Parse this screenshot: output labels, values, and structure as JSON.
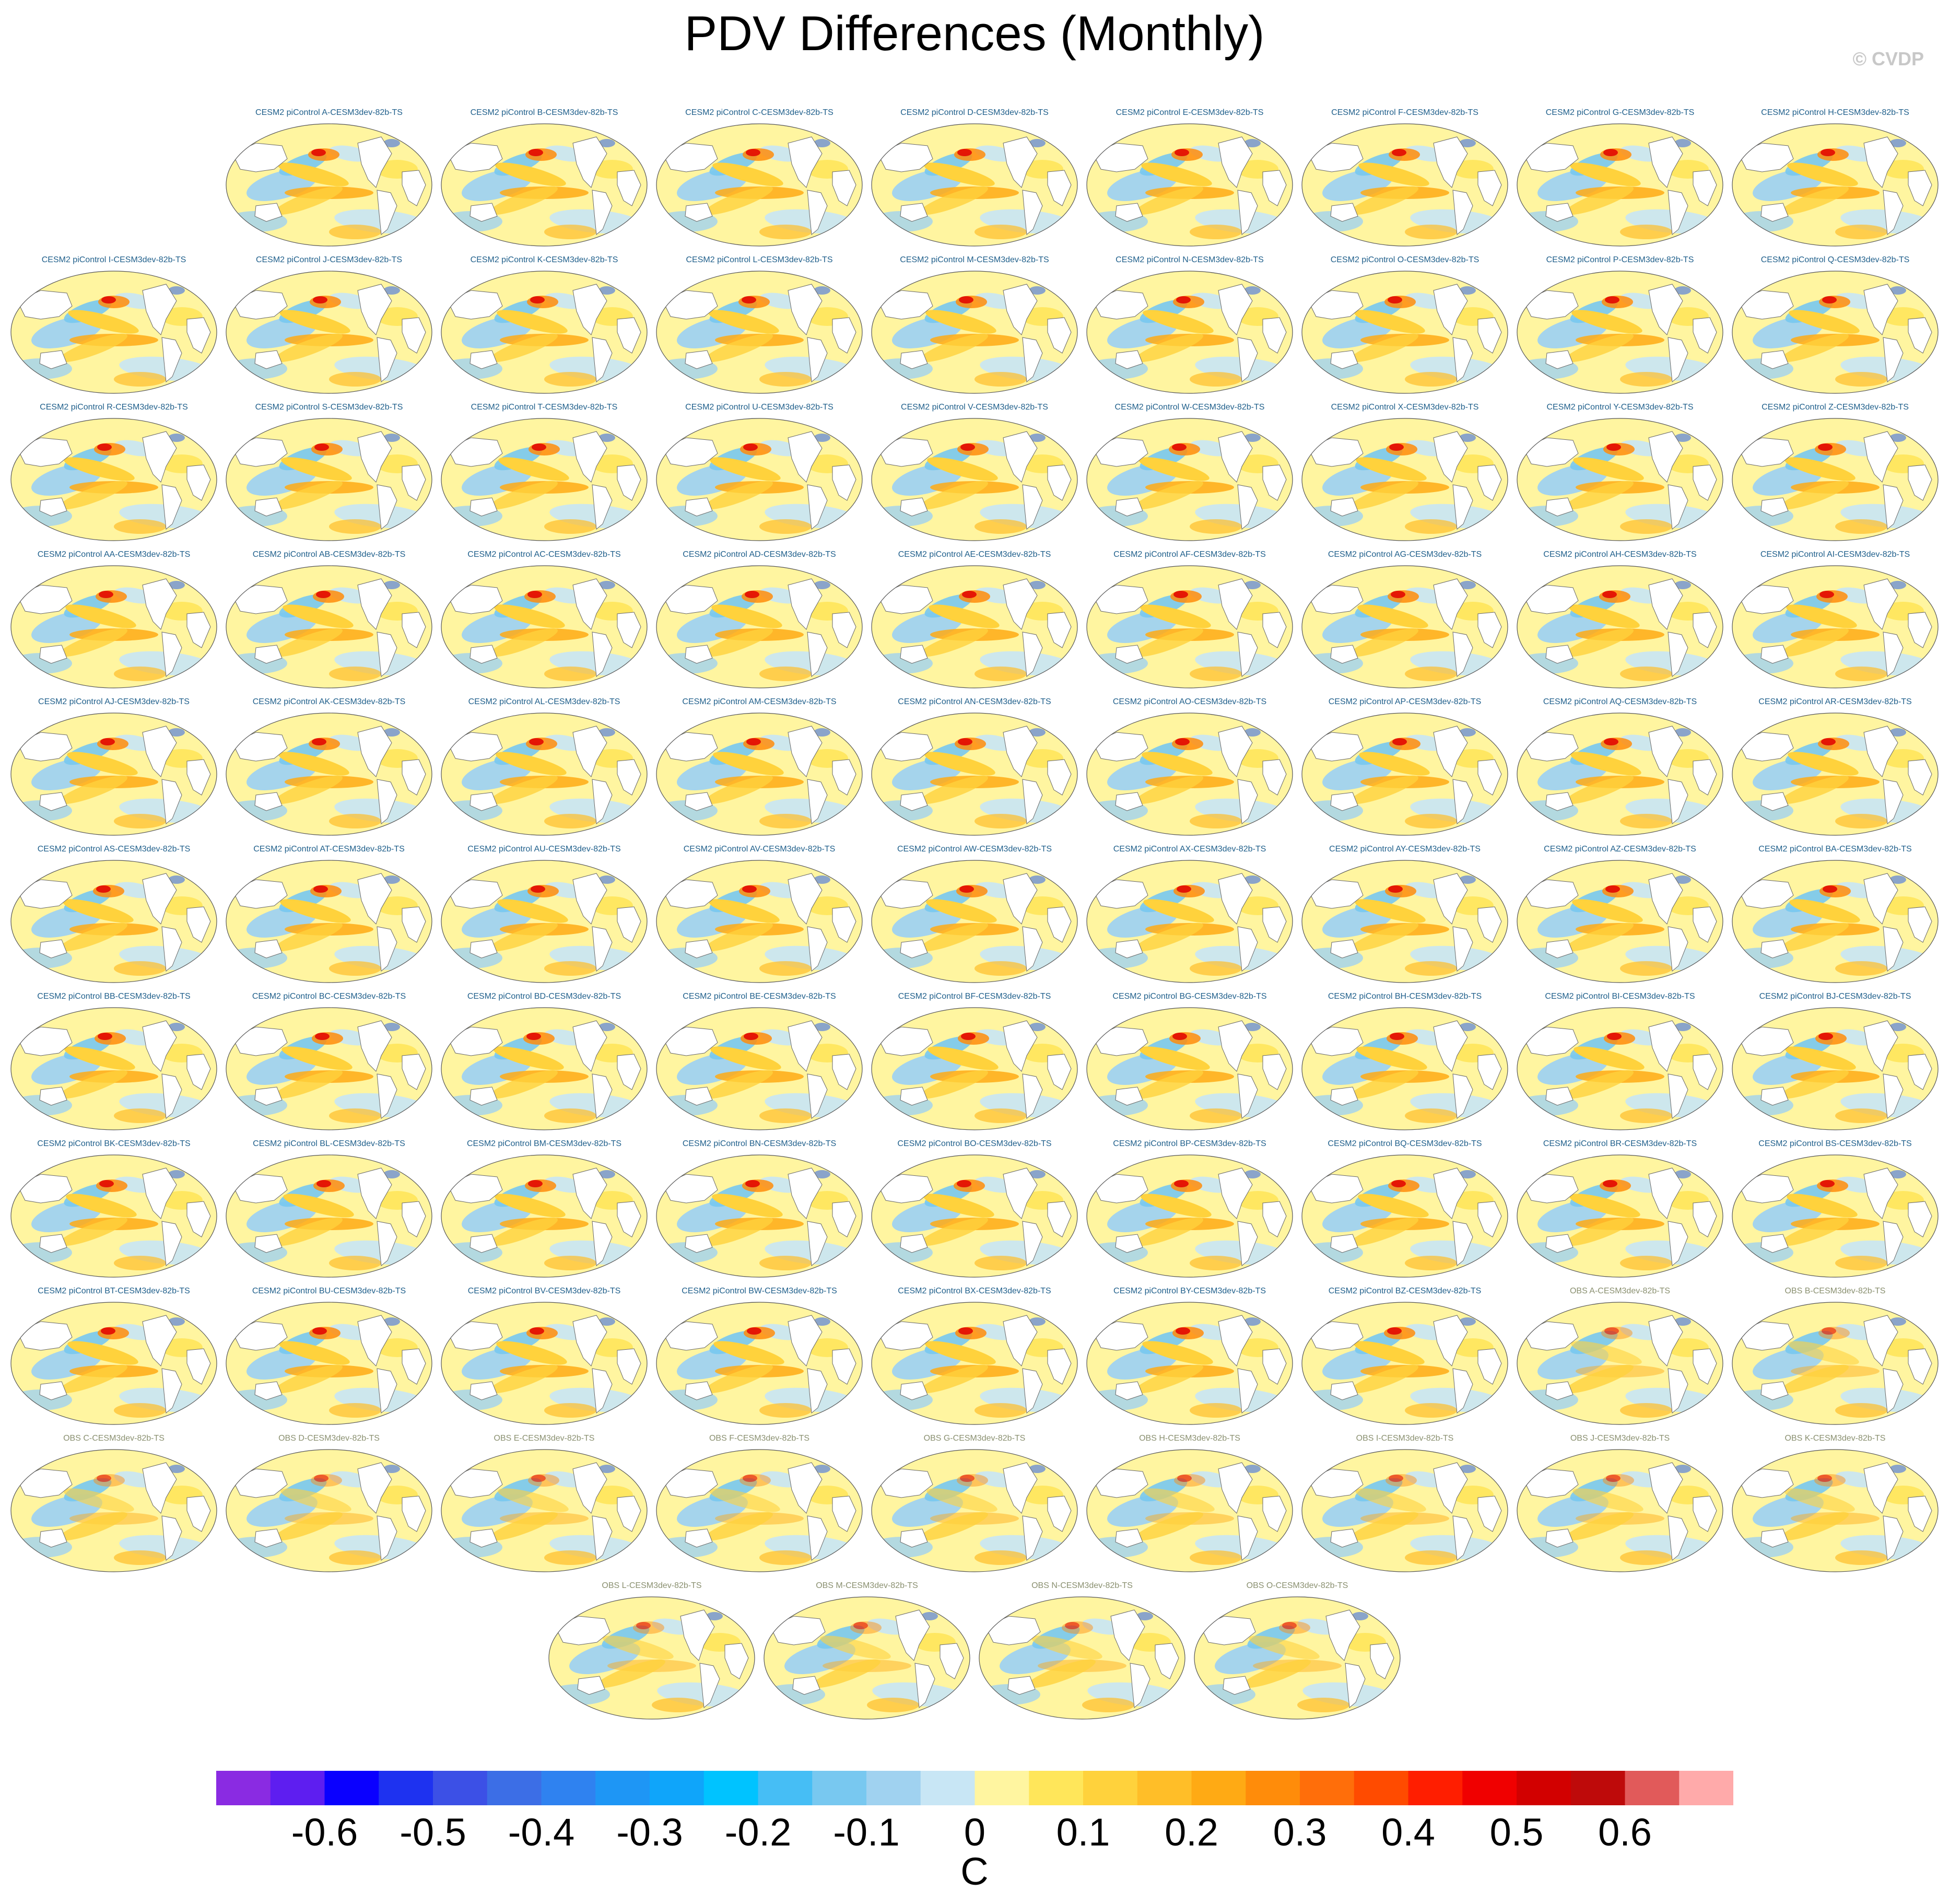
{
  "title": "PDV Differences (Monthly)",
  "credit": "© CVDP",
  "units": "C",
  "panels": {
    "model_prefix": "CESM2 piControl ",
    "obs_prefix": "OBS ",
    "suffix": "-CESM3dev-82b-TS",
    "model_members": [
      "A",
      "B",
      "C",
      "D",
      "E",
      "F",
      "G",
      "H",
      "I",
      "J",
      "K",
      "L",
      "M",
      "N",
      "O",
      "P",
      "Q",
      "R",
      "S",
      "T",
      "U",
      "V",
      "W",
      "X",
      "Y",
      "Z",
      "AA",
      "AB",
      "AC",
      "AD",
      "AE",
      "AF",
      "AG",
      "AH",
      "AI",
      "AJ",
      "AK",
      "AL",
      "AM",
      "AN",
      "AO",
      "AP",
      "AQ",
      "AR",
      "AS",
      "AT",
      "AU",
      "AV",
      "AW",
      "AX",
      "AY",
      "AZ",
      "BA",
      "BB",
      "BC",
      "BD",
      "BE",
      "BF",
      "BG",
      "BH",
      "BI",
      "BJ",
      "BK",
      "BL",
      "BM",
      "BN",
      "BO",
      "BP",
      "BQ",
      "BR",
      "BS",
      "BT",
      "BU",
      "BV",
      "BW",
      "BX",
      "BY",
      "BZ"
    ],
    "obs_members": [
      "A",
      "B",
      "C",
      "D",
      "E",
      "F",
      "G",
      "H",
      "I",
      "J",
      "K",
      "L",
      "M",
      "N",
      "O"
    ]
  },
  "chart_data": {
    "type": "heatmap",
    "title": "PDV Differences (Monthly)",
    "colorbar": {
      "label": "C",
      "tick_labels": [
        "-0.6",
        "-0.5",
        "-0.4",
        "-0.3",
        "-0.2",
        "-0.1",
        "0",
        "0.1",
        "0.2",
        "0.3",
        "0.4",
        "0.5",
        "0.6"
      ],
      "boundaries": [
        -0.7,
        -0.65,
        -0.6,
        -0.55,
        -0.5,
        -0.45,
        -0.4,
        -0.35,
        -0.3,
        -0.25,
        -0.2,
        -0.15,
        -0.1,
        -0.05,
        0,
        0.05,
        0.1,
        0.15,
        0.2,
        0.25,
        0.3,
        0.35,
        0.4,
        0.45,
        0.5,
        0.55,
        0.6,
        0.65,
        0.7
      ],
      "colors": [
        "#8a2be2",
        "#5e1ef0",
        "#0a00ff",
        "#1e32f0",
        "#3c50e6",
        "#3c6ee6",
        "#2f82f0",
        "#1e96f5",
        "#0fa5fa",
        "#00c3ff",
        "#46bef5",
        "#78c8f0",
        "#a0d2f0",
        "#c8e6f5",
        "#fff5a0",
        "#ffe65a",
        "#ffd23c",
        "#ffbe28",
        "#ffaa14",
        "#ff8c0a",
        "#ff6e0a",
        "#ff4b00",
        "#ff1e00",
        "#f00000",
        "#d20000",
        "#be0a0a",
        "#e15a5a",
        "#ffaaaa"
      ]
    }
  }
}
